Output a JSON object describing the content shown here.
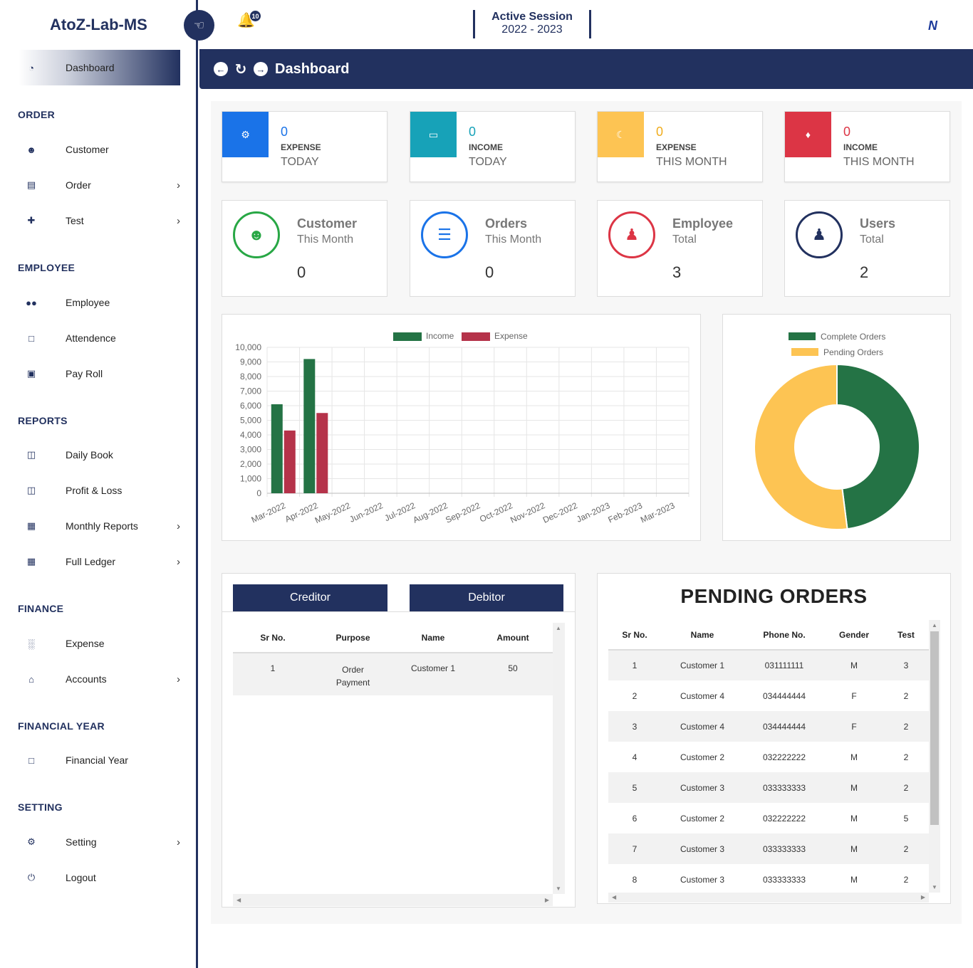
{
  "brand": "AtoZ-Lab-MS",
  "notifications": {
    "count": "10"
  },
  "session": {
    "label": "Active Session",
    "years": "2022  -  2023"
  },
  "logo_text": "N",
  "sidebar": {
    "dashboard": "Dashboard",
    "sections": {
      "order": "ORDER",
      "employee": "EMPLOYEE",
      "reports": "REPORTS",
      "finance": "FINANCE",
      "financial_year": "FINANCIAL YEAR",
      "setting": "SETTING"
    },
    "items": {
      "customer": "Customer",
      "order": "Order",
      "test": "Test",
      "employee": "Employee",
      "attendence": "Attendence",
      "payroll": "Pay Roll",
      "daily_book": "Daily Book",
      "profit_loss": "Profit & Loss",
      "monthly_reports": "Monthly Reports",
      "full_ledger": "Full Ledger",
      "expense": "Expense",
      "accounts": "Accounts",
      "financial_year": "Financial Year",
      "setting": "Setting",
      "logout": "Logout"
    }
  },
  "page_title": "Dashboard",
  "info_boxes": [
    {
      "value": "0",
      "kind": "EXPENSE",
      "period": "TODAY",
      "color": "#1a73e8"
    },
    {
      "value": "0",
      "kind": "INCOME",
      "period": "TODAY",
      "color": "#17a2b8"
    },
    {
      "value": "0",
      "kind": "EXPENSE",
      "period": "THIS MONTH",
      "color": "#ffc107"
    },
    {
      "value": "0",
      "kind": "INCOME",
      "period": "THIS MONTH",
      "color": "#dc3545"
    }
  ],
  "stat_boxes": [
    {
      "title": "Customer",
      "sub": "This Month",
      "value": "0",
      "color": "#28a745"
    },
    {
      "title": "Orders",
      "sub": "This Month",
      "value": "0",
      "color": "#1a73e8"
    },
    {
      "title": "Employee",
      "sub": "Total",
      "value": "3",
      "color": "#dc3545"
    },
    {
      "title": "Users",
      "sub": "Total",
      "value": "2",
      "color": "#22315f"
    }
  ],
  "chart_data": [
    {
      "type": "bar",
      "categories": [
        "Mar-2022",
        "Apr-2022",
        "May-2022",
        "Jun-2022",
        "Jul-2022",
        "Aug-2022",
        "Sep-2022",
        "Oct-2022",
        "Nov-2022",
        "Dec-2022",
        "Jan-2023",
        "Feb-2023",
        "Mar-2023"
      ],
      "series": [
        {
          "name": "Income",
          "color": "#247345",
          "values": [
            6100,
            9200,
            0,
            0,
            0,
            0,
            0,
            0,
            0,
            0,
            0,
            0,
            0
          ]
        },
        {
          "name": "Expense",
          "color": "#b5334a",
          "values": [
            4300,
            5500,
            0,
            0,
            0,
            0,
            0,
            0,
            0,
            0,
            0,
            0,
            0
          ]
        }
      ],
      "ylim": [
        0,
        10000
      ],
      "yticks": [
        "10,000",
        "9,000",
        "8,000",
        "7,000",
        "6,000",
        "5,000",
        "4,000",
        "3,000",
        "2,000",
        "1,000",
        "0"
      ],
      "grid": true,
      "legend": "top"
    },
    {
      "type": "pie",
      "labels": [
        "Complete Orders",
        "Pending Orders"
      ],
      "values": [
        48,
        52
      ],
      "colors": [
        "#247345",
        "#fdc453"
      ],
      "legend": "top"
    }
  ],
  "ledger": {
    "tabs": [
      "Creditor",
      "Debitor"
    ],
    "headers": [
      "Sr No.",
      "Purpose",
      "Name",
      "Amount"
    ],
    "rows": [
      {
        "sr": "1",
        "purpose": "Order Payment",
        "name": "Customer 1",
        "amount": "50"
      }
    ]
  },
  "pending": {
    "title": "PENDING ORDERS",
    "headers": [
      "Sr No.",
      "Name",
      "Phone No.",
      "Gender",
      "Test"
    ],
    "rows": [
      [
        "1",
        "Customer 1",
        "031111111",
        "M",
        "3"
      ],
      [
        "2",
        "Customer 4",
        "034444444",
        "F",
        "2"
      ],
      [
        "3",
        "Customer 4",
        "034444444",
        "F",
        "2"
      ],
      [
        "4",
        "Customer 2",
        "032222222",
        "M",
        "2"
      ],
      [
        "5",
        "Customer 3",
        "033333333",
        "M",
        "2"
      ],
      [
        "6",
        "Customer 2",
        "032222222",
        "M",
        "5"
      ],
      [
        "7",
        "Customer 3",
        "033333333",
        "M",
        "2"
      ],
      [
        "8",
        "Customer 3",
        "033333333",
        "M",
        "2"
      ]
    ]
  }
}
